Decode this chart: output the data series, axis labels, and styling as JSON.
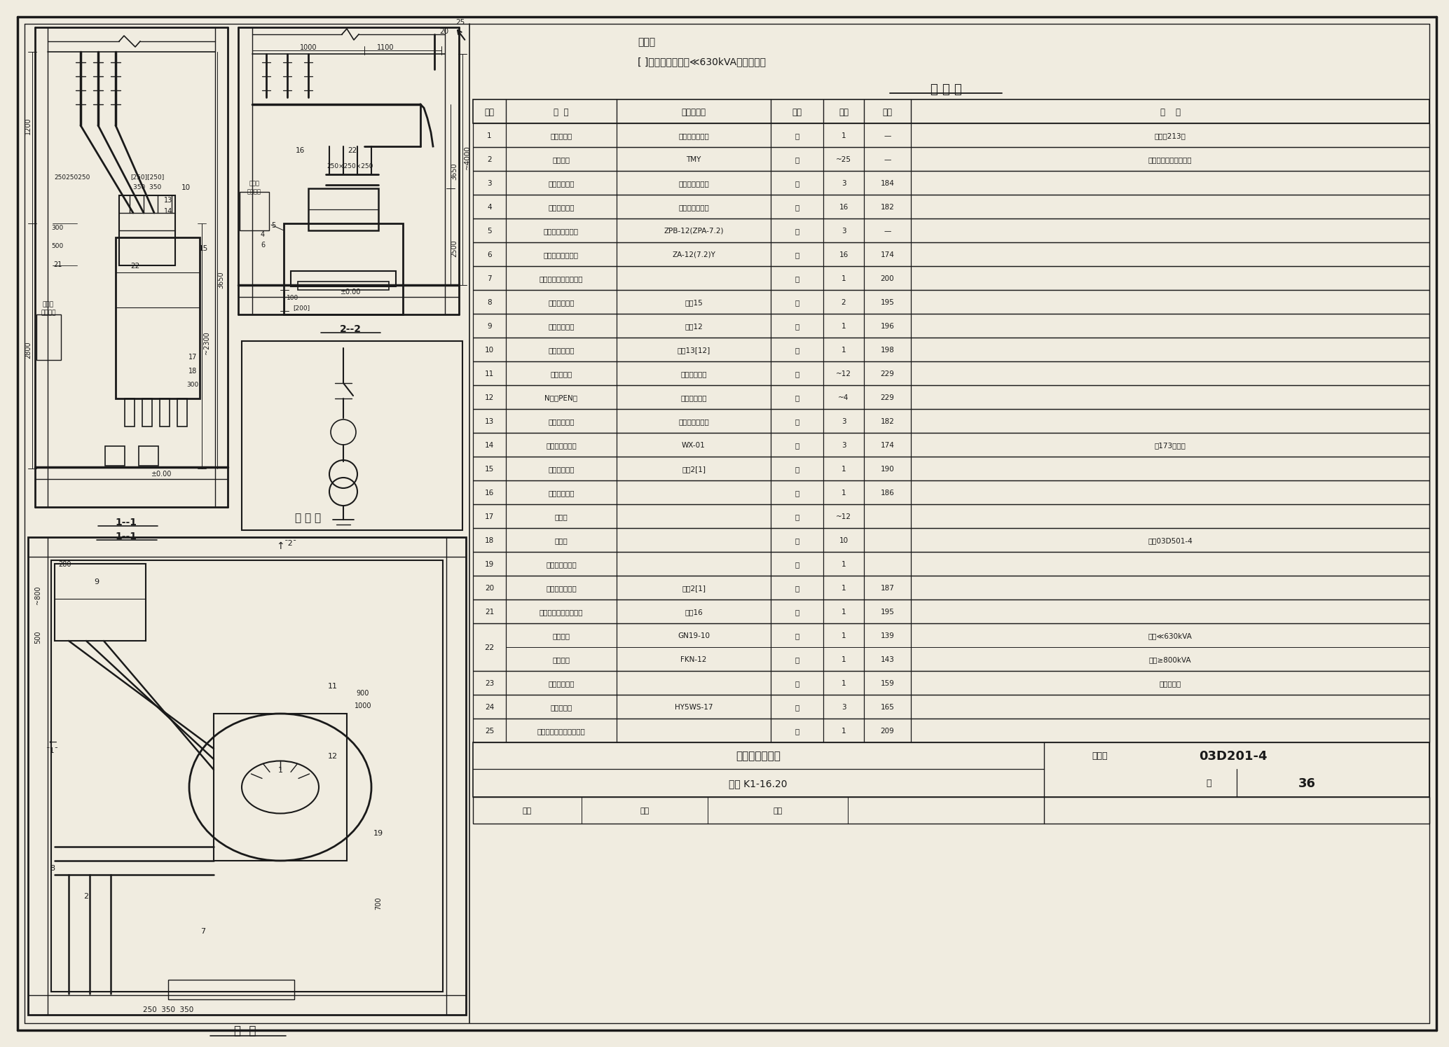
{
  "bg_color": "#f0ece0",
  "line_color": "#1a1a1a",
  "note_line1": "说明：",
  "note_line2": "《 》内数字用于容量≪630kVA的变压器。",
  "table_title": "明 细 表",
  "table_headers": [
    "序号",
    "名  称",
    "型号及规格",
    "单位",
    "数量",
    "页次",
    "备    注"
  ],
  "table_rows": [
    [
      "1",
      "电力变压器",
      "由工程设计确定",
      "台",
      "1",
      "—",
      "接地规213页"
    ],
    [
      "2",
      "高压母线",
      "TMY",
      "米",
      "~25",
      "—",
      "规格按变压器容量确定"
    ],
    [
      "3",
      "高压母线夹具",
      "按母线截面确定",
      "付",
      "3",
      "184",
      ""
    ],
    [
      "4",
      "高压母线夹具",
      "按母线截面确定",
      "付",
      "16",
      "182",
      ""
    ],
    [
      "5",
      "户外式支柱绕缘子",
      "ZPB-12(ZPA-7.2)",
      "个",
      "3",
      "—",
      ""
    ],
    [
      "6",
      "户内式支柱绕缘子",
      "ZA-12(7.2)Y",
      "个",
      "16",
      "174",
      ""
    ],
    [
      "7",
      "高压母线及避雷器支架",
      "",
      "个",
      "1",
      "200",
      ""
    ],
    [
      "8",
      "高压母线支架",
      "型式15",
      "个",
      "2",
      "195",
      ""
    ],
    [
      "9",
      "高压母线支架",
      "型式12",
      "个",
      "1",
      "196",
      ""
    ],
    [
      "10",
      "高压母线支架",
      "型式13[12]",
      "个",
      "1",
      "198",
      ""
    ],
    [
      "11",
      "低压相母线",
      "见附录（四）",
      "米",
      "~12",
      "229",
      ""
    ],
    [
      "12",
      "N线或PEN线",
      "见附录（四）",
      "米",
      "~4",
      "229",
      ""
    ],
    [
      "13",
      "低压母线夹具",
      "按母线截面确定",
      "付",
      "3",
      "182",
      ""
    ],
    [
      "14",
      "电车线路绕缘子",
      "WX-01",
      "个",
      "3",
      "174",
      "按173页装配"
    ],
    [
      "15",
      "低压母线支架",
      "型式2[1]",
      "个",
      "1",
      "190",
      ""
    ],
    [
      "16",
      "低压母线夹板",
      "",
      "付",
      "1",
      "186",
      ""
    ],
    [
      "17",
      "接地线",
      "",
      "米",
      "~12",
      "",
      ""
    ],
    [
      "18",
      "固定钉",
      "",
      "个",
      "10",
      "",
      "参觀03D501-4"
    ],
    [
      "19",
      "临时接地接线柱",
      "",
      "个",
      "1",
      "",
      ""
    ],
    [
      "20",
      "低压母线穿墙板",
      "型式2[1]",
      "套",
      "1",
      "187",
      ""
    ],
    [
      "21",
      "高低压母线支架（二）",
      "型式16",
      "个",
      "1",
      "195",
      ""
    ],
    [
      "22a",
      "隔离开关",
      "GN19-10",
      "台",
      "1",
      "139",
      "用于≪630kVA"
    ],
    [
      "22b",
      "负荷开关",
      "FKN-12",
      "台",
      "1",
      "143",
      "用于≥800kVA"
    ],
    [
      "23",
      "手力操动机构",
      "",
      "台",
      "1",
      "159",
      "为配套产品"
    ],
    [
      "24",
      "高压避雷器",
      "HY5WS-17",
      "个",
      "3",
      "165",
      ""
    ],
    [
      "25",
      "高压架空引入线拉紧装置",
      "",
      "套",
      "1",
      "209",
      ""
    ]
  ],
  "bottom_title1": "变压器室布置图",
  "bottom_title2": "方案 K1-16.20",
  "atlas_label": "图集号",
  "atlas_number": "03D201-4",
  "page_label": "页",
  "page_number": "36"
}
